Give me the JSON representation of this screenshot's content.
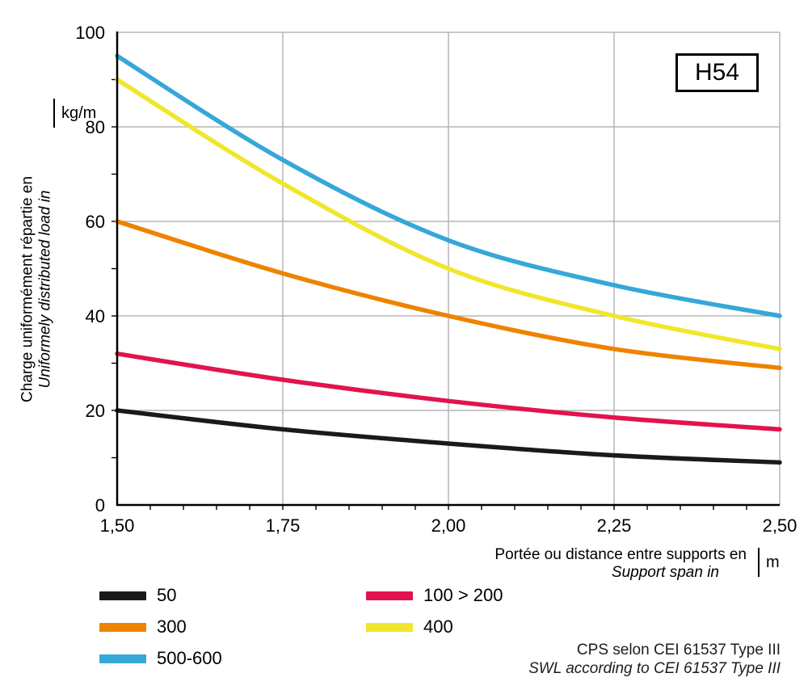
{
  "chart_data": {
    "type": "line",
    "title": "H54",
    "xlabel_fr": "Portée ou distance entre supports en",
    "xlabel_en": "Support span in",
    "x_unit": "m",
    "ylabel_fr": "Charge uniformément répartie en",
    "ylabel_en": "Uniformely distributed load in",
    "y_unit": "kg/m",
    "xlim": [
      1.5,
      2.5
    ],
    "ylim": [
      0,
      100
    ],
    "grid": true,
    "legend_position": "bottom-left",
    "x": [
      1.5,
      1.75,
      2.0,
      2.25,
      2.5
    ],
    "x_tick_labels": [
      "1,50",
      "1,75",
      "2,00",
      "2,25",
      "2,50"
    ],
    "y_ticks": [
      0,
      20,
      40,
      60,
      80,
      100
    ],
    "y_tick_labels": [
      "0",
      "20",
      "40",
      "60",
      "80",
      "100"
    ],
    "series": [
      {
        "name": "50",
        "color": "#1a1a1a",
        "values": [
          20,
          16,
          13,
          10.5,
          9
        ]
      },
      {
        "name": "100 > 200",
        "color": "#e2134e",
        "values": [
          32,
          26.5,
          22,
          18.5,
          16
        ]
      },
      {
        "name": "300",
        "color": "#ee8300",
        "values": [
          60,
          49,
          40,
          33,
          29
        ]
      },
      {
        "name": "400",
        "color": "#f0e62c",
        "values": [
          90,
          68,
          50,
          40,
          33
        ]
      },
      {
        "name": "500-600",
        "color": "#36a7d9",
        "values": [
          95,
          73,
          56,
          46.5,
          40
        ]
      }
    ]
  },
  "footer": {
    "line1": "CPS selon CEI 61537 Type III",
    "line2": "SWL according to CEI 61537 Type III"
  }
}
